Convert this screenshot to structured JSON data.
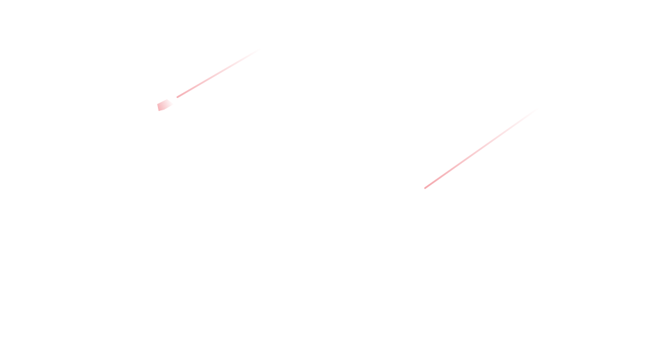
{
  "background_color": "#ffffff",
  "streak_color": "#f4a7ad",
  "streaks": [
    {
      "name": "streak-upper-left",
      "has_head": true
    },
    {
      "name": "streak-lower-right",
      "has_head": false
    }
  ]
}
